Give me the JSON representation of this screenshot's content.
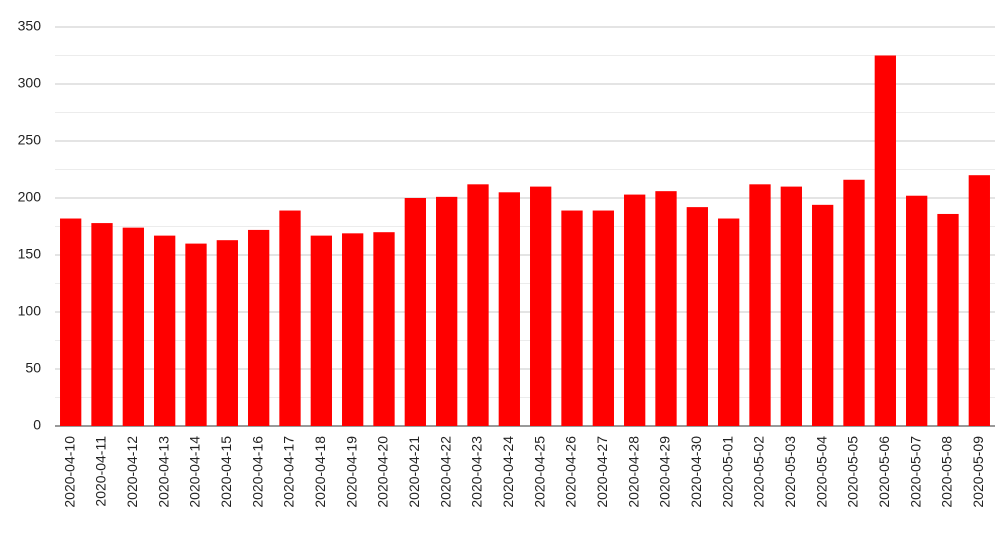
{
  "chart_data": {
    "type": "bar",
    "categories": [
      "2020-04-10",
      "2020-04-11",
      "2020-04-12",
      "2020-04-13",
      "2020-04-14",
      "2020-04-15",
      "2020-04-16",
      "2020-04-17",
      "2020-04-18",
      "2020-04-19",
      "2020-04-20",
      "2020-04-21",
      "2020-04-22",
      "2020-04-23",
      "2020-04-24",
      "2020-04-25",
      "2020-04-26",
      "2020-04-27",
      "2020-04-28",
      "2020-04-29",
      "2020-04-30",
      "2020-05-01",
      "2020-05-02",
      "2020-05-03",
      "2020-05-04",
      "2020-05-05",
      "2020-05-06",
      "2020-05-07",
      "2020-05-08",
      "2020-05-09"
    ],
    "values": [
      182,
      178,
      174,
      167,
      160,
      163,
      172,
      189,
      167,
      169,
      170,
      200,
      201,
      212,
      205,
      210,
      189,
      189,
      203,
      206,
      192,
      182,
      212,
      210,
      194,
      216,
      325,
      202,
      186,
      220
    ],
    "color": "#ff0000",
    "ylim": [
      0,
      350
    ],
    "yticks": [
      0,
      50,
      100,
      150,
      200,
      250,
      300,
      350
    ],
    "grid": true,
    "minor_grid": true
  }
}
